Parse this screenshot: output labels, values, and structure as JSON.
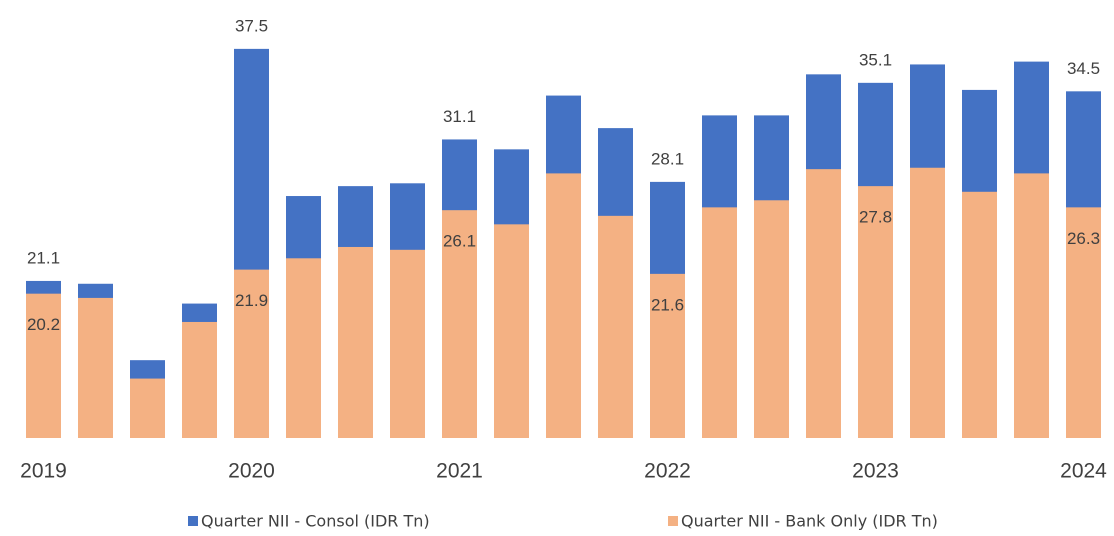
{
  "chart_data": {
    "type": "bar",
    "overlap": true,
    "categories": [
      "2019",
      null,
      null,
      null,
      "2020",
      null,
      null,
      null,
      "2021",
      null,
      null,
      null,
      "2022",
      null,
      null,
      null,
      "2023",
      null,
      null,
      null,
      "2024"
    ],
    "series": [
      {
        "name": "Quarter NII - Consol (IDR Tn)",
        "color": "#4472c4",
        "values": [
          21.1,
          20.9,
          15.5,
          19.5,
          37.5,
          27.1,
          27.8,
          28.0,
          31.1,
          30.4,
          34.2,
          31.9,
          28.1,
          32.8,
          32.8,
          35.7,
          35.1,
          36.4,
          34.6,
          36.6,
          34.5
        ],
        "value_labels": [
          "21.1",
          null,
          null,
          null,
          "37.5",
          null,
          null,
          null,
          "31.1",
          null,
          null,
          null,
          "28.1",
          null,
          null,
          null,
          "35.1",
          null,
          null,
          null,
          "34.5"
        ]
      },
      {
        "name": "Quarter NII - Bank Only (IDR Tn)",
        "color": "#f4b183",
        "values": [
          20.2,
          19.9,
          14.2,
          18.2,
          21.9,
          22.7,
          23.5,
          23.3,
          26.1,
          25.1,
          28.7,
          25.7,
          21.6,
          26.3,
          26.8,
          29.0,
          27.8,
          29.1,
          27.4,
          28.7,
          26.3
        ],
        "value_labels": [
          "20.2",
          null,
          null,
          null,
          "21.9",
          null,
          null,
          null,
          "26.1",
          null,
          null,
          null,
          "21.6",
          null,
          null,
          null,
          "27.8",
          null,
          null,
          null,
          "26.3"
        ]
      }
    ],
    "ylim": [
      10,
      40
    ],
    "legend": "bottom"
  }
}
